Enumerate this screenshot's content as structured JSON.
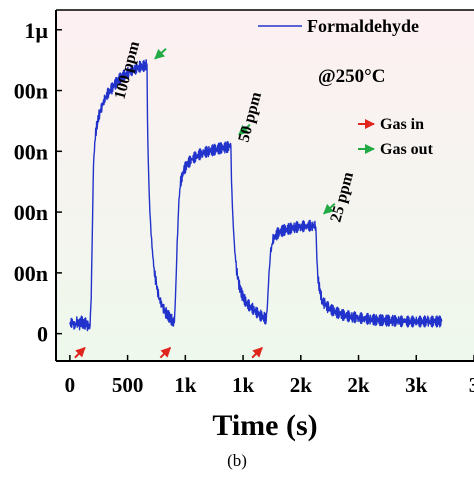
{
  "chart_data": {
    "type": "line",
    "xlabel": "Time (s)",
    "ylabel": "",
    "x_ticks": [
      "0",
      "500",
      "1k",
      "1k",
      "2k",
      "2k",
      "3k",
      "3"
    ],
    "x_tick_values": [
      0,
      500,
      1000,
      1500,
      2000,
      2500,
      3000,
      3500
    ],
    "y_ticks": [
      "0",
      "00n",
      "00n",
      "00n",
      "00n",
      "1µ"
    ],
    "y_tick_values": [
      0,
      200,
      400,
      600,
      800,
      1000
    ],
    "xlim": [
      -120,
      3500
    ],
    "ylim": [
      -90,
      1065
    ],
    "grid": false,
    "legend": "top-right",
    "series": [
      {
        "name": "Formaldehyde",
        "color": "#2233cc",
        "points": [
          [
            0,
            30
          ],
          [
            20,
            40
          ],
          [
            40,
            25
          ],
          [
            60,
            38
          ],
          [
            80,
            28
          ],
          [
            100,
            42
          ],
          [
            120,
            30
          ],
          [
            140,
            35
          ],
          [
            160,
            20
          ],
          [
            175,
            30
          ],
          [
            185,
            120
          ],
          [
            195,
            350
          ],
          [
            205,
            560
          ],
          [
            220,
            650
          ],
          [
            240,
            700
          ],
          [
            260,
            730
          ],
          [
            280,
            750
          ],
          [
            300,
            770
          ],
          [
            330,
            790
          ],
          [
            360,
            805
          ],
          [
            390,
            820
          ],
          [
            420,
            835
          ],
          [
            450,
            845
          ],
          [
            480,
            852
          ],
          [
            510,
            860
          ],
          [
            540,
            868
          ],
          [
            570,
            872
          ],
          [
            600,
            878
          ],
          [
            630,
            880
          ],
          [
            650,
            882
          ],
          [
            668,
            886
          ],
          [
            672,
            700
          ],
          [
            680,
            550
          ],
          [
            690,
            430
          ],
          [
            700,
            350
          ],
          [
            715,
            270
          ],
          [
            730,
            210
          ],
          [
            750,
            160
          ],
          [
            770,
            120
          ],
          [
            790,
            100
          ],
          [
            810,
            85
          ],
          [
            830,
            70
          ],
          [
            850,
            60
          ],
          [
            870,
            50
          ],
          [
            890,
            42
          ],
          [
            905,
            35
          ],
          [
            915,
            120
          ],
          [
            930,
            300
          ],
          [
            945,
            440
          ],
          [
            960,
            500
          ],
          [
            990,
            540
          ],
          [
            1020,
            560
          ],
          [
            1060,
            575
          ],
          [
            1100,
            585
          ],
          [
            1150,
            595
          ],
          [
            1200,
            600
          ],
          [
            1250,
            605
          ],
          [
            1300,
            610
          ],
          [
            1350,
            612
          ],
          [
            1395,
            618
          ],
          [
            1400,
            500
          ],
          [
            1412,
            380
          ],
          [
            1425,
            290
          ],
          [
            1440,
            220
          ],
          [
            1460,
            170
          ],
          [
            1480,
            140
          ],
          [
            1500,
            120
          ],
          [
            1530,
            100
          ],
          [
            1560,
            90
          ],
          [
            1590,
            80
          ],
          [
            1620,
            70
          ],
          [
            1650,
            60
          ],
          [
            1680,
            55
          ],
          [
            1700,
            45
          ],
          [
            1712,
            100
          ],
          [
            1725,
            200
          ],
          [
            1740,
            270
          ],
          [
            1760,
            310
          ],
          [
            1800,
            330
          ],
          [
            1850,
            340
          ],
          [
            1900,
            345
          ],
          [
            1950,
            350
          ],
          [
            2000,
            352
          ],
          [
            2050,
            355
          ],
          [
            2100,
            355
          ],
          [
            2130,
            357
          ],
          [
            2140,
            240
          ],
          [
            2150,
            180
          ],
          [
            2165,
            140
          ],
          [
            2185,
            110
          ],
          [
            2210,
            95
          ],
          [
            2240,
            85
          ],
          [
            2280,
            75
          ],
          [
            2320,
            68
          ],
          [
            2360,
            62
          ],
          [
            2400,
            58
          ],
          [
            2450,
            55
          ],
          [
            2500,
            52
          ],
          [
            2550,
            50
          ],
          [
            2600,
            48
          ],
          [
            2650,
            45
          ],
          [
            2700,
            44
          ],
          [
            2750,
            43
          ],
          [
            2800,
            42
          ],
          [
            2850,
            41
          ],
          [
            2900,
            40
          ],
          [
            3000,
            40
          ],
          [
            3100,
            40
          ],
          [
            3200,
            40
          ],
          [
            3220,
            40
          ]
        ]
      }
    ],
    "annotations": {
      "condition": "@250°C",
      "conc_100": "100 ppm",
      "conc_50": "50 ppm",
      "conc_25": "25 ppm",
      "gas_in": "Gas in",
      "gas_out": "Gas out",
      "panel": "(b)"
    },
    "gas_in_times": [
      165,
      905,
      1700
    ],
    "gas_out_times": [
      668,
      1395,
      2130
    ],
    "colors": {
      "line": "#2233cc",
      "gas_in_arrow": "#e0261c",
      "gas_out_arrow": "#22aa44",
      "bg_top": "#fdf0f2",
      "bg_bottom": "#eef8ec"
    }
  }
}
